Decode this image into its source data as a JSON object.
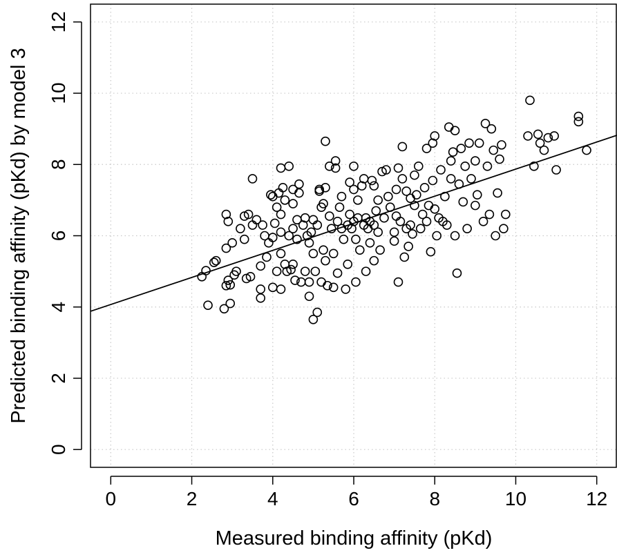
{
  "chart_data": {
    "type": "scatter",
    "xlabel": "Measured binding affinity (pKd)",
    "ylabel": "Predicted binding affinity (pKd) by model 3",
    "xlim": [
      -0.5,
      12.5
    ],
    "ylim": [
      -0.5,
      12.5
    ],
    "x_ticks": [
      0,
      2,
      4,
      6,
      8,
      10,
      12
    ],
    "y_ticks": [
      0,
      2,
      4,
      6,
      8,
      10,
      12
    ],
    "grid": true,
    "fit_line": {
      "intercept": 4.07,
      "slope": 0.38
    },
    "series": [
      {
        "points": [
          [
            2.25,
            4.85
          ],
          [
            2.35,
            5.02
          ],
          [
            2.4,
            4.05
          ],
          [
            2.55,
            5.25
          ],
          [
            2.6,
            5.3
          ],
          [
            2.8,
            3.95
          ],
          [
            2.85,
            4.6
          ],
          [
            2.85,
            5.65
          ],
          [
            2.85,
            6.6
          ],
          [
            2.9,
            6.4
          ],
          [
            2.9,
            4.75
          ],
          [
            2.95,
            4.62
          ],
          [
            2.95,
            4.1
          ],
          [
            3.0,
            5.8
          ],
          [
            3.05,
            4.9
          ],
          [
            3.1,
            5.0
          ],
          [
            3.2,
            6.2
          ],
          [
            3.3,
            6.55
          ],
          [
            3.3,
            5.9
          ],
          [
            3.35,
            4.8
          ],
          [
            3.4,
            6.6
          ],
          [
            3.45,
            4.85
          ],
          [
            3.5,
            6.3
          ],
          [
            3.5,
            7.6
          ],
          [
            3.6,
            6.45
          ],
          [
            3.7,
            4.25
          ],
          [
            3.7,
            4.5
          ],
          [
            3.7,
            5.15
          ],
          [
            3.75,
            6.3
          ],
          [
            3.8,
            6.0
          ],
          [
            3.85,
            5.4
          ],
          [
            3.9,
            5.8
          ],
          [
            3.95,
            7.15
          ],
          [
            4.0,
            7.1
          ],
          [
            4.0,
            5.95
          ],
          [
            4.0,
            4.55
          ],
          [
            4.05,
            6.35
          ],
          [
            4.1,
            5.0
          ],
          [
            4.1,
            6.8
          ],
          [
            4.15,
            7.2
          ],
          [
            4.2,
            6.6
          ],
          [
            4.2,
            7.9
          ],
          [
            4.2,
            6.1
          ],
          [
            4.2,
            5.5
          ],
          [
            4.2,
            4.5
          ],
          [
            4.25,
            7.35
          ],
          [
            4.3,
            7.0
          ],
          [
            4.3,
            5.2
          ],
          [
            4.35,
            5.0
          ],
          [
            4.4,
            7.95
          ],
          [
            4.4,
            6.0
          ],
          [
            4.45,
            5.05
          ],
          [
            4.5,
            6.2
          ],
          [
            4.5,
            6.9
          ],
          [
            4.5,
            7.3
          ],
          [
            4.5,
            5.2
          ],
          [
            4.55,
            4.75
          ],
          [
            4.6,
            5.9
          ],
          [
            4.6,
            6.45
          ],
          [
            4.65,
            7.45
          ],
          [
            4.65,
            7.2
          ],
          [
            4.7,
            4.7
          ],
          [
            4.75,
            6.3
          ],
          [
            4.8,
            6.5
          ],
          [
            4.8,
            5.0
          ],
          [
            4.85,
            6.0
          ],
          [
            4.9,
            5.8
          ],
          [
            4.9,
            4.7
          ],
          [
            4.9,
            4.3
          ],
          [
            4.95,
            6.1
          ],
          [
            5.0,
            3.65
          ],
          [
            5.0,
            5.5
          ],
          [
            5.0,
            6.45
          ],
          [
            5.05,
            5.0
          ],
          [
            5.1,
            6.3
          ],
          [
            5.1,
            3.85
          ],
          [
            5.15,
            7.3
          ],
          [
            5.15,
            7.25
          ],
          [
            5.2,
            4.7
          ],
          [
            5.2,
            6.8
          ],
          [
            5.25,
            5.6
          ],
          [
            5.25,
            6.9
          ],
          [
            5.3,
            8.65
          ],
          [
            5.3,
            7.35
          ],
          [
            5.3,
            5.3
          ],
          [
            5.35,
            4.6
          ],
          [
            5.4,
            6.55
          ],
          [
            5.4,
            7.95
          ],
          [
            5.45,
            6.2
          ],
          [
            5.5,
            5.5
          ],
          [
            5.5,
            4.55
          ],
          [
            5.55,
            8.1
          ],
          [
            5.55,
            7.9
          ],
          [
            5.6,
            6.4
          ],
          [
            5.6,
            4.95
          ],
          [
            5.65,
            6.8
          ],
          [
            5.7,
            6.2
          ],
          [
            5.7,
            7.1
          ],
          [
            5.75,
            5.9
          ],
          [
            5.8,
            4.5
          ],
          [
            5.85,
            5.2
          ],
          [
            5.85,
            6.3
          ],
          [
            5.9,
            6.6
          ],
          [
            5.9,
            7.5
          ],
          [
            5.95,
            6.2
          ],
          [
            6.0,
            6.4
          ],
          [
            6.0,
            7.95
          ],
          [
            6.0,
            7.3
          ],
          [
            6.05,
            5.9
          ],
          [
            6.05,
            4.7
          ],
          [
            6.1,
            6.5
          ],
          [
            6.1,
            7.0
          ],
          [
            6.15,
            5.6
          ],
          [
            6.2,
            7.4
          ],
          [
            6.25,
            6.3
          ],
          [
            6.25,
            7.6
          ],
          [
            6.3,
            6.5
          ],
          [
            6.3,
            5.0
          ],
          [
            6.35,
            6.2
          ],
          [
            6.4,
            5.8
          ],
          [
            6.4,
            6.4
          ],
          [
            6.45,
            7.55
          ],
          [
            6.5,
            6.3
          ],
          [
            6.5,
            5.3
          ],
          [
            6.5,
            7.4
          ],
          [
            6.55,
            6.7
          ],
          [
            6.6,
            7.0
          ],
          [
            6.6,
            6.1
          ],
          [
            6.65,
            5.6
          ],
          [
            6.7,
            7.8
          ],
          [
            6.75,
            6.5
          ],
          [
            6.8,
            7.85
          ],
          [
            6.85,
            7.1
          ],
          [
            6.9,
            6.8
          ],
          [
            7.0,
            6.1
          ],
          [
            7.0,
            5.85
          ],
          [
            7.05,
            7.3
          ],
          [
            7.05,
            6.55
          ],
          [
            7.1,
            4.7
          ],
          [
            7.1,
            7.9
          ],
          [
            7.15,
            6.4
          ],
          [
            7.2,
            8.5
          ],
          [
            7.2,
            7.6
          ],
          [
            7.25,
            5.4
          ],
          [
            7.3,
            6.2
          ],
          [
            7.3,
            7.25
          ],
          [
            7.35,
            5.7
          ],
          [
            7.4,
            6.3
          ],
          [
            7.4,
            7.05
          ],
          [
            7.45,
            6.05
          ],
          [
            7.5,
            7.7
          ],
          [
            7.5,
            6.85
          ],
          [
            7.55,
            7.15
          ],
          [
            7.6,
            7.95
          ],
          [
            7.65,
            6.2
          ],
          [
            7.7,
            6.6
          ],
          [
            7.75,
            7.35
          ],
          [
            7.8,
            8.45
          ],
          [
            7.8,
            6.4
          ],
          [
            7.85,
            6.85
          ],
          [
            7.9,
            5.55
          ],
          [
            7.95,
            8.6
          ],
          [
            7.95,
            7.55
          ],
          [
            8.0,
            8.8
          ],
          [
            8.0,
            6.75
          ],
          [
            8.05,
            6.0
          ],
          [
            8.1,
            6.5
          ],
          [
            8.15,
            7.85
          ],
          [
            8.2,
            6.4
          ],
          [
            8.25,
            7.1
          ],
          [
            8.3,
            6.3
          ],
          [
            8.35,
            9.05
          ],
          [
            8.4,
            8.1
          ],
          [
            8.4,
            7.6
          ],
          [
            8.45,
            8.35
          ],
          [
            8.5,
            6.0
          ],
          [
            8.5,
            8.95
          ],
          [
            8.55,
            4.95
          ],
          [
            8.6,
            7.45
          ],
          [
            8.65,
            8.45
          ],
          [
            8.7,
            6.95
          ],
          [
            8.75,
            7.95
          ],
          [
            8.8,
            6.2
          ],
          [
            8.85,
            8.6
          ],
          [
            8.9,
            7.6
          ],
          [
            9.0,
            6.85
          ],
          [
            9.0,
            8.1
          ],
          [
            9.05,
            7.15
          ],
          [
            9.1,
            8.6
          ],
          [
            9.2,
            6.4
          ],
          [
            9.25,
            9.15
          ],
          [
            9.3,
            7.95
          ],
          [
            9.35,
            6.6
          ],
          [
            9.4,
            9.0
          ],
          [
            9.45,
            8.4
          ],
          [
            9.5,
            6.0
          ],
          [
            9.55,
            7.2
          ],
          [
            9.6,
            8.15
          ],
          [
            9.65,
            8.55
          ],
          [
            9.7,
            6.2
          ],
          [
            9.75,
            6.6
          ],
          [
            10.3,
            8.8
          ],
          [
            10.35,
            9.8
          ],
          [
            10.45,
            7.95
          ],
          [
            10.55,
            8.85
          ],
          [
            10.6,
            8.6
          ],
          [
            10.7,
            8.4
          ],
          [
            10.8,
            8.75
          ],
          [
            10.95,
            8.8
          ],
          [
            11.0,
            7.85
          ],
          [
            11.55,
            9.35
          ],
          [
            11.55,
            9.2
          ],
          [
            11.75,
            8.4
          ]
        ]
      }
    ]
  }
}
